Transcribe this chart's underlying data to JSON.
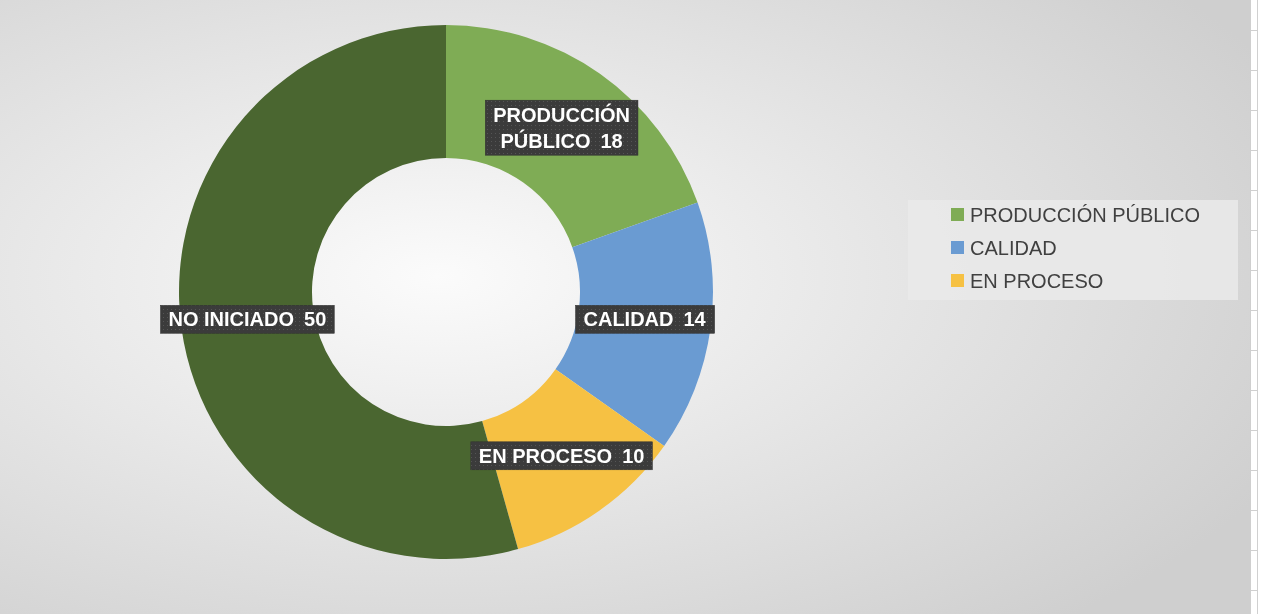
{
  "chart_data": {
    "type": "donut",
    "categories": [
      "PRODUCCIÓN PÚBLICO",
      "CALIDAD",
      "EN PROCESO",
      "NO INICIADO"
    ],
    "values": [
      18,
      14,
      10,
      50
    ],
    "colors": [
      "#7fac55",
      "#6a9bd2",
      "#f6c143",
      "#4a6630"
    ],
    "data_labels": true,
    "legend": "right"
  }
}
